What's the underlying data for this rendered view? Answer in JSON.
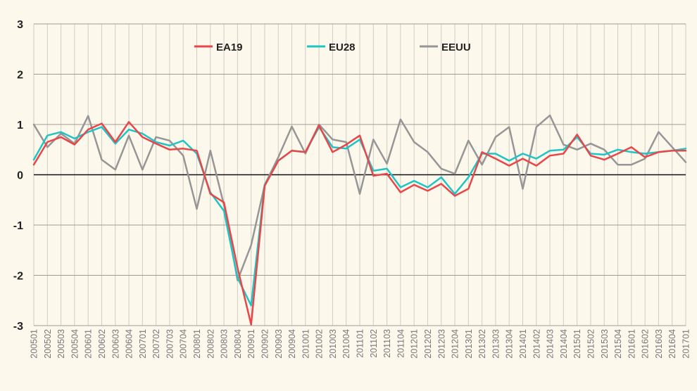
{
  "chart_data": {
    "type": "line",
    "categories": [
      "200501",
      "200502",
      "200503",
      "200504",
      "200601",
      "200602",
      "200603",
      "200604",
      "200701",
      "200702",
      "200703",
      "200704",
      "200801",
      "200802",
      "200803",
      "200804",
      "200901",
      "200902",
      "200903",
      "200904",
      "201001",
      "201002",
      "201003",
      "201004",
      "201101",
      "201102",
      "201103",
      "201104",
      "201201",
      "201202",
      "201203",
      "201204",
      "201301",
      "201302",
      "201303",
      "201304",
      "201401",
      "201402",
      "201403",
      "201404",
      "201501",
      "201502",
      "201503",
      "201504",
      "201601",
      "201602",
      "201603",
      "201604",
      "201701"
    ],
    "x_tick_labels": [
      "200501",
      "200502",
      "200503",
      "200504",
      "200601",
      "200602",
      "200603",
      "200604",
      "200701",
      "200702",
      "200703",
      "200704",
      "200801",
      "200802",
      "200803",
      "200804",
      "200901",
      "200902",
      "200903",
      "200904",
      "201001",
      "201002",
      "201003",
      "201004",
      "201101",
      "201102",
      "201103",
      "201104",
      "201201",
      "201202",
      "201203",
      "201204",
      "201301",
      "201302",
      "201303",
      "201304",
      "201401",
      "201402",
      "201403",
      "201404",
      "201501",
      "201502",
      "201503",
      "201504",
      "201601",
      "201602",
      "201603",
      "201604",
      "201701"
    ],
    "y_ticks": [
      3,
      2,
      1,
      0,
      -1,
      -2,
      -3
    ],
    "ylim": [
      -3,
      3
    ],
    "legend_position": "top-center",
    "grid": true,
    "series": [
      {
        "name": "EA19",
        "color": "#e8474a",
        "values": [
          0.2,
          0.65,
          0.75,
          0.6,
          0.9,
          1.02,
          0.65,
          1.05,
          0.75,
          0.62,
          0.5,
          0.52,
          0.48,
          -0.38,
          -0.55,
          -1.85,
          -2.98,
          -0.22,
          0.28,
          0.48,
          0.45,
          0.98,
          0.45,
          0.6,
          0.78,
          -0.02,
          0.02,
          -0.35,
          -0.2,
          -0.32,
          -0.18,
          -0.42,
          -0.28,
          0.45,
          0.32,
          0.18,
          0.32,
          0.18,
          0.38,
          0.42,
          0.8,
          0.38,
          0.3,
          0.42,
          0.55,
          0.35,
          0.45,
          0.48,
          0.48
        ]
      },
      {
        "name": "EU28",
        "color": "#20c4c4",
        "values": [
          0.3,
          0.78,
          0.85,
          0.72,
          0.85,
          0.95,
          0.62,
          0.9,
          0.82,
          0.65,
          0.58,
          0.68,
          0.42,
          -0.35,
          -0.72,
          -2.05,
          -2.6,
          -0.2,
          0.28,
          0.48,
          0.45,
          0.95,
          0.55,
          0.52,
          0.7,
          0.08,
          0.12,
          -0.25,
          -0.12,
          -0.25,
          -0.05,
          -0.38,
          -0.05,
          0.42,
          0.42,
          0.28,
          0.42,
          0.32,
          0.48,
          0.5,
          0.75,
          0.42,
          0.4,
          0.5,
          0.45,
          0.42,
          0.45,
          0.48,
          0.52
        ]
      },
      {
        "name": "EEUU",
        "color": "#969696",
        "values": [
          1.0,
          0.55,
          0.82,
          0.62,
          1.17,
          0.3,
          0.1,
          0.78,
          0.1,
          0.75,
          0.68,
          0.38,
          -0.68,
          0.48,
          -0.6,
          -2.1,
          -1.4,
          -0.2,
          0.35,
          0.96,
          0.42,
          1.0,
          0.7,
          0.65,
          -0.38,
          0.7,
          0.22,
          1.1,
          0.65,
          0.45,
          0.12,
          0.02,
          0.68,
          0.2,
          0.75,
          0.95,
          -0.28,
          0.95,
          1.18,
          0.6,
          0.5,
          0.62,
          0.5,
          0.2,
          0.2,
          0.32,
          0.85,
          0.55,
          0.25
        ]
      }
    ]
  }
}
